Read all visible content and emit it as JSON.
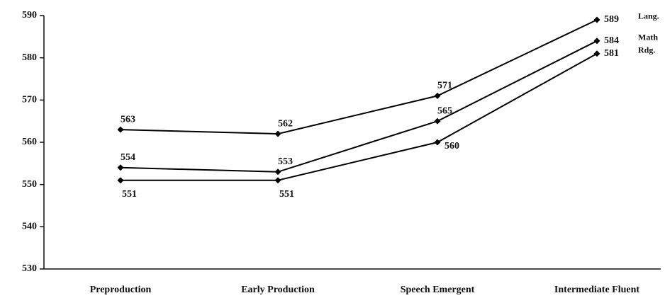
{
  "chart_data": {
    "type": "line",
    "categories": [
      "Preproduction",
      "Early Production",
      "Speech Emergent",
      "Intermediate Fluent"
    ],
    "series": [
      {
        "name": "Lang.",
        "color": "#000000",
        "values": [
          563,
          562,
          571,
          589
        ]
      },
      {
        "name": "Math",
        "color": "#000000",
        "values": [
          554,
          553,
          565,
          584
        ]
      },
      {
        "name": "Rdg.",
        "color": "#000000",
        "values": [
          551,
          551,
          560,
          581
        ]
      }
    ],
    "ylim": [
      530,
      590
    ],
    "yticks": [
      530,
      540,
      550,
      560,
      570,
      580,
      590
    ],
    "grid": false
  }
}
